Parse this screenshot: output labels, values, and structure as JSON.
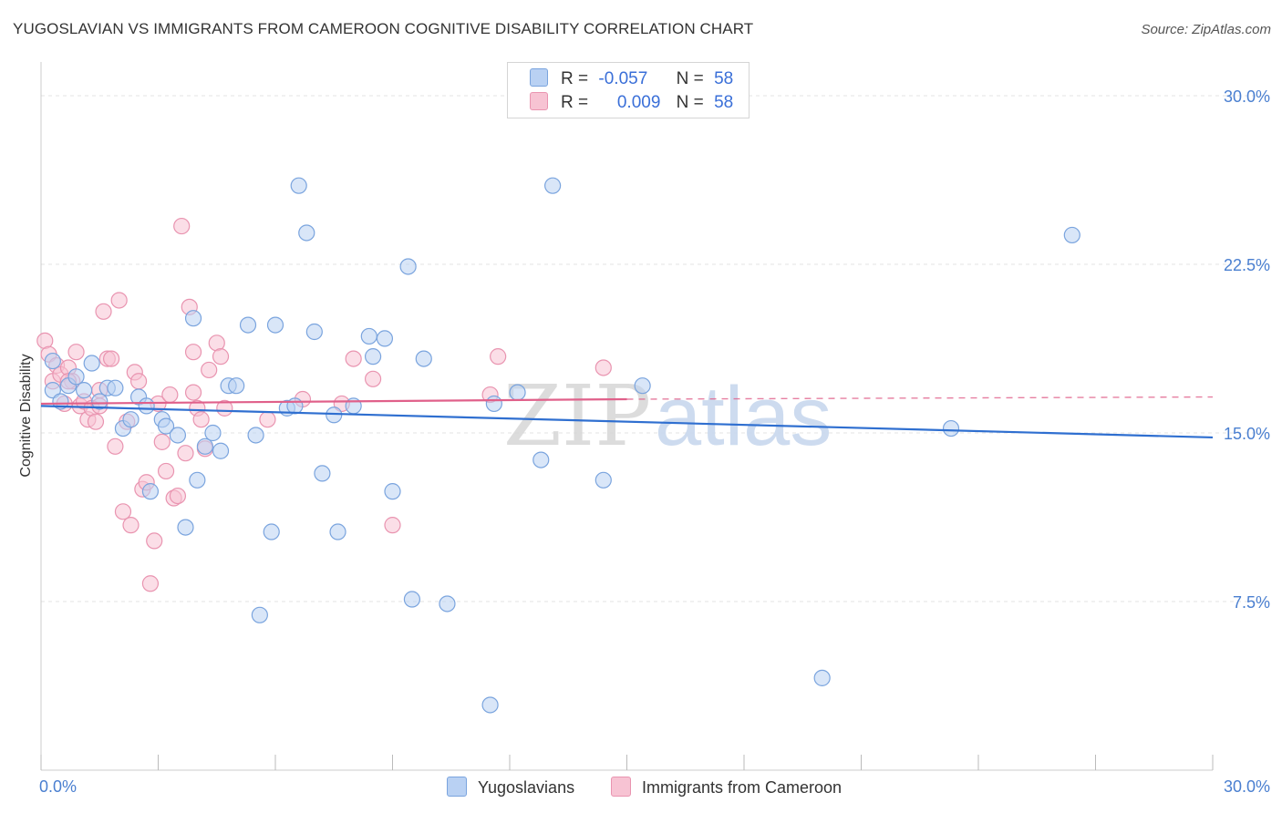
{
  "header": {
    "title": "YUGOSLAVIAN VS IMMIGRANTS FROM CAMEROON COGNITIVE DISABILITY CORRELATION CHART",
    "source": "Source: ZipAtlas.com"
  },
  "legend": {
    "rows": [
      {
        "r_label": "R =",
        "r_value": "-0.057",
        "n_label": "N =",
        "n_value": "58"
      },
      {
        "r_label": "R =",
        "r_value": "0.009",
        "n_label": "N =",
        "n_value": "58"
      }
    ]
  },
  "watermark": {
    "zip": "ZIP",
    "atlas": "atlas"
  },
  "colors": {
    "blue_fill": "#b9d1f3",
    "blue_stroke": "#7aa4de",
    "blue_line": "#2f6fd0",
    "pink_fill": "#f7c3d3",
    "pink_stroke": "#e994b0",
    "pink_line": "#e0608a",
    "tick_text": "#4a7fd0",
    "grid": "#e3e3e3"
  },
  "chart_data": {
    "type": "scatter",
    "title": "YUGOSLAVIAN VS IMMIGRANTS FROM CAMEROON COGNITIVE DISABILITY CORRELATION CHART",
    "xlabel": "",
    "ylabel": "Cognitive Disability",
    "xlim": [
      0,
      30
    ],
    "ylim": [
      0,
      31.5
    ],
    "y_ticks": [
      7.5,
      15.0,
      22.5,
      30.0
    ],
    "y_tick_labels": [
      "7.5%",
      "15.0%",
      "22.5%",
      "30.0%"
    ],
    "x_tick_labels": [
      "0.0%",
      "30.0%"
    ],
    "legend_position": "top-center",
    "series": [
      {
        "name": "Yugoslavians",
        "r": -0.057,
        "n": 58,
        "trend": {
          "x": [
            0,
            30
          ],
          "y": [
            16.2,
            14.8
          ]
        },
        "points": [
          [
            0.3,
            18.2
          ],
          [
            0.3,
            16.9
          ],
          [
            0.5,
            16.4
          ],
          [
            0.7,
            17.1
          ],
          [
            0.9,
            17.5
          ],
          [
            1.1,
            16.9
          ],
          [
            1.3,
            18.1
          ],
          [
            1.5,
            16.4
          ],
          [
            1.7,
            17.0
          ],
          [
            1.9,
            17.0
          ],
          [
            2.1,
            15.2
          ],
          [
            2.3,
            15.6
          ],
          [
            2.5,
            16.6
          ],
          [
            2.7,
            16.2
          ],
          [
            2.8,
            12.4
          ],
          [
            3.1,
            15.6
          ],
          [
            3.2,
            15.3
          ],
          [
            3.5,
            14.9
          ],
          [
            3.7,
            10.8
          ],
          [
            3.9,
            20.1
          ],
          [
            4.0,
            12.9
          ],
          [
            4.2,
            14.4
          ],
          [
            4.4,
            15.0
          ],
          [
            4.6,
            14.2
          ],
          [
            4.8,
            17.1
          ],
          [
            5.0,
            17.1
          ],
          [
            5.3,
            19.8
          ],
          [
            5.5,
            14.9
          ],
          [
            5.6,
            6.9
          ],
          [
            5.9,
            10.6
          ],
          [
            6.0,
            19.8
          ],
          [
            6.3,
            16.1
          ],
          [
            6.5,
            16.2
          ],
          [
            6.6,
            26.0
          ],
          [
            6.8,
            23.9
          ],
          [
            7.0,
            19.5
          ],
          [
            7.2,
            13.2
          ],
          [
            7.5,
            15.8
          ],
          [
            7.6,
            10.6
          ],
          [
            8.0,
            16.2
          ],
          [
            8.4,
            19.3
          ],
          [
            8.5,
            18.4
          ],
          [
            8.8,
            19.2
          ],
          [
            9.0,
            12.4
          ],
          [
            9.4,
            22.4
          ],
          [
            9.5,
            7.6
          ],
          [
            9.8,
            18.3
          ],
          [
            10.4,
            7.4
          ],
          [
            11.5,
            2.9
          ],
          [
            11.6,
            16.3
          ],
          [
            12.2,
            16.8
          ],
          [
            12.8,
            13.8
          ],
          [
            13.1,
            26.0
          ],
          [
            14.4,
            12.9
          ],
          [
            15.4,
            17.1
          ],
          [
            20.0,
            4.1
          ],
          [
            23.3,
            15.2
          ],
          [
            26.4,
            23.8
          ]
        ]
      },
      {
        "name": "Immigrants from Cameroon",
        "r": 0.009,
        "n": 58,
        "trend": {
          "x": [
            0,
            15
          ],
          "y": [
            16.3,
            16.5
          ]
        },
        "trend_dashed": {
          "x": [
            15,
            30
          ],
          "y": [
            16.5,
            16.6
          ]
        },
        "points": [
          [
            0.1,
            19.1
          ],
          [
            0.2,
            18.5
          ],
          [
            0.3,
            17.3
          ],
          [
            0.4,
            18.0
          ],
          [
            0.5,
            17.6
          ],
          [
            0.6,
            16.3
          ],
          [
            0.7,
            17.9
          ],
          [
            0.8,
            17.3
          ],
          [
            0.9,
            18.6
          ],
          [
            1.0,
            16.2
          ],
          [
            1.1,
            16.4
          ],
          [
            1.2,
            15.6
          ],
          [
            1.3,
            16.1
          ],
          [
            1.4,
            15.5
          ],
          [
            1.5,
            16.9
          ],
          [
            1.6,
            20.4
          ],
          [
            1.7,
            18.3
          ],
          [
            1.8,
            18.3
          ],
          [
            1.9,
            14.4
          ],
          [
            2.0,
            20.9
          ],
          [
            2.1,
            11.5
          ],
          [
            2.2,
            15.5
          ],
          [
            2.3,
            10.9
          ],
          [
            2.4,
            17.7
          ],
          [
            2.5,
            17.3
          ],
          [
            2.6,
            12.5
          ],
          [
            2.7,
            12.8
          ],
          [
            2.8,
            8.3
          ],
          [
            2.9,
            10.2
          ],
          [
            3.0,
            16.3
          ],
          [
            3.1,
            14.6
          ],
          [
            3.2,
            13.3
          ],
          [
            3.3,
            16.7
          ],
          [
            3.4,
            12.1
          ],
          [
            3.5,
            12.2
          ],
          [
            3.6,
            24.2
          ],
          [
            3.7,
            14.1
          ],
          [
            3.8,
            20.6
          ],
          [
            3.9,
            18.6
          ],
          [
            4.0,
            16.1
          ],
          [
            4.1,
            15.6
          ],
          [
            4.2,
            14.3
          ],
          [
            4.3,
            17.8
          ],
          [
            4.5,
            19.0
          ],
          [
            4.6,
            18.4
          ],
          [
            4.7,
            16.1
          ],
          [
            5.8,
            15.6
          ],
          [
            6.7,
            16.5
          ],
          [
            7.7,
            16.3
          ],
          [
            8.0,
            18.3
          ],
          [
            8.5,
            17.4
          ],
          [
            9.0,
            10.9
          ],
          [
            11.5,
            16.7
          ],
          [
            11.7,
            18.4
          ],
          [
            14.4,
            17.9
          ],
          [
            0.7,
            17.3
          ],
          [
            1.5,
            16.2
          ],
          [
            3.9,
            16.8
          ]
        ]
      }
    ]
  },
  "bottom_legend": [
    {
      "label": "Yugoslavians"
    },
    {
      "label": "Immigrants from Cameroon"
    }
  ]
}
